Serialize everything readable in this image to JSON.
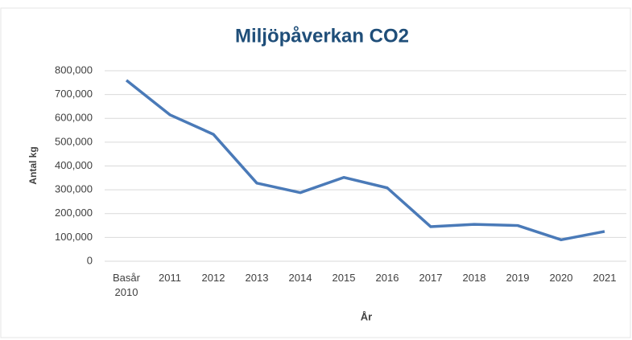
{
  "chart_data": {
    "type": "line",
    "title": "Miljöpåverkan CO2",
    "x_label": "År",
    "y_label": "Antal kg",
    "categories": [
      "Basår 2010",
      "2011",
      "2012",
      "2013",
      "2014",
      "2015",
      "2016",
      "2017",
      "2018",
      "2019",
      "2020",
      "2021"
    ],
    "values": [
      760000,
      615000,
      533000,
      328000,
      288000,
      352000,
      308000,
      145000,
      155000,
      150000,
      90000,
      125000
    ],
    "color": "#4a7ab8",
    "ylim": [
      0,
      800000
    ],
    "yticks": [
      0,
      {
        "value": 100000,
        "label": "100,000"
      },
      {
        "value": 200000,
        "label": "200,000"
      },
      {
        "value": 300000,
        "label": "300,000"
      },
      {
        "value": 400000,
        "label": "400,000"
      },
      {
        "value": 500000,
        "label": "500,000"
      },
      {
        "value": 600000,
        "label": "600,000"
      },
      {
        "value": 700000,
        "label": "700,000"
      },
      {
        "value": 800000,
        "label": "800,000"
      }
    ],
    "grid": true
  }
}
